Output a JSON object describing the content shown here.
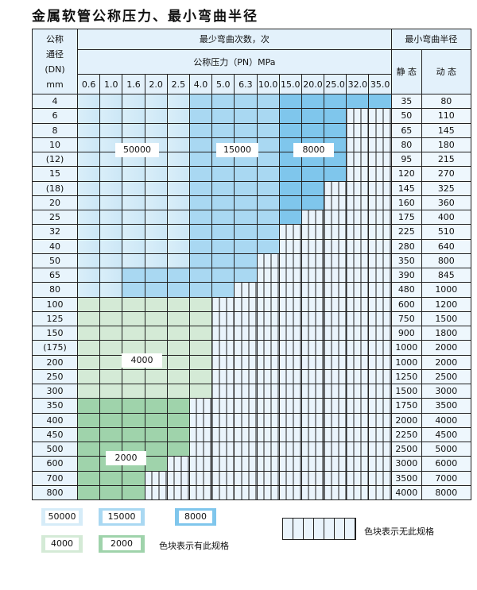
{
  "title": "金属软管公称压力、最小弯曲半径",
  "header": {
    "dn_label_lines": [
      "公称",
      "通径",
      "(DN)",
      "mm"
    ],
    "cycles_label": "最少弯曲次数，次",
    "pressure_label": "公称压力（PN）MPa",
    "radius_label": "最小弯曲半径",
    "static_label": "静 态",
    "dynamic_label": "动 态",
    "pressures": [
      "0.6",
      "1.0",
      "1.6",
      "2.0",
      "2.5",
      "4.0",
      "5.0",
      "6.3",
      "10.0",
      "15.0",
      "20.0",
      "25.0",
      "32.0",
      "35.0"
    ]
  },
  "legend_codes": {
    "A": "50000",
    "B": "15000",
    "C": "8000",
    "D": "4000",
    "E": "2000",
    "N": "none"
  },
  "colors": {
    "A": "#d9eef9",
    "B": "#a9d8f2",
    "C": "#7fc6ec",
    "D": "#d4ead6",
    "E": "#9fd3ab",
    "N": "#eaf4fc"
  },
  "rows": [
    {
      "dn": "4",
      "cells": "AAAAABBBBCCCCC",
      "static": "35",
      "dynamic": "80"
    },
    {
      "dn": "6",
      "cells": "AAAAABBBBCCCNN",
      "static": "50",
      "dynamic": "110"
    },
    {
      "dn": "8",
      "cells": "AAAAABBBBCCCNN",
      "static": "65",
      "dynamic": "145"
    },
    {
      "dn": "10",
      "cells": "AAAAABBBBCCCNN",
      "static": "80",
      "dynamic": "180"
    },
    {
      "dn": "(12)",
      "cells": "AAAAABBBBCCCNN",
      "static": "95",
      "dynamic": "215"
    },
    {
      "dn": "15",
      "cells": "AAAAABBBBCCCNN",
      "static": "120",
      "dynamic": "270"
    },
    {
      "dn": "(18)",
      "cells": "AAAAABBBBCCNNN",
      "static": "145",
      "dynamic": "325"
    },
    {
      "dn": "20",
      "cells": "AAAAABBBBCCNNN",
      "static": "160",
      "dynamic": "360"
    },
    {
      "dn": "25",
      "cells": "AAAAABBBBCNNNN",
      "static": "175",
      "dynamic": "400"
    },
    {
      "dn": "32",
      "cells": "AAAAABBBBNNNNN",
      "static": "225",
      "dynamic": "510"
    },
    {
      "dn": "40",
      "cells": "AAAAABBBBNNNNN",
      "static": "280",
      "dynamic": "640"
    },
    {
      "dn": "50",
      "cells": "AAAAABBBNNNNNN",
      "static": "350",
      "dynamic": "800"
    },
    {
      "dn": "65",
      "cells": "AABBBBBBNNNNNN",
      "static": "390",
      "dynamic": "845"
    },
    {
      "dn": "80",
      "cells": "AABBBBBNNNNNNN",
      "static": "480",
      "dynamic": "1000"
    },
    {
      "dn": "100",
      "cells": "DDDDDDNNNNNNNN",
      "static": "600",
      "dynamic": "1200"
    },
    {
      "dn": "125",
      "cells": "DDDDDDNNNNNNNN",
      "static": "750",
      "dynamic": "1500"
    },
    {
      "dn": "150",
      "cells": "DDDDDDNNNNNNNN",
      "static": "900",
      "dynamic": "1800"
    },
    {
      "dn": "(175)",
      "cells": "DDDDDDNNNNNNNN",
      "static": "1000",
      "dynamic": "2000"
    },
    {
      "dn": "200",
      "cells": "DDDDDDNNNNNNNN",
      "static": "1000",
      "dynamic": "2000"
    },
    {
      "dn": "250",
      "cells": "DDDDDDNNNNNNNN",
      "static": "1250",
      "dynamic": "2500"
    },
    {
      "dn": "300",
      "cells": "DDDDDDNNNNNNNN",
      "static": "1500",
      "dynamic": "3000"
    },
    {
      "dn": "350",
      "cells": "EEEEENNNNNNNNN",
      "static": "1750",
      "dynamic": "3500"
    },
    {
      "dn": "400",
      "cells": "EEEEENNNNNNNNN",
      "static": "2000",
      "dynamic": "4000"
    },
    {
      "dn": "450",
      "cells": "EEEEENNNNNNNNN",
      "static": "2250",
      "dynamic": "4500"
    },
    {
      "dn": "500",
      "cells": "EEEEENNNNNNNNN",
      "static": "2500",
      "dynamic": "5000"
    },
    {
      "dn": "600",
      "cells": "EEEENNNNNNNNNN",
      "static": "3000",
      "dynamic": "6000"
    },
    {
      "dn": "700",
      "cells": "EEENNNNNNNNNNN",
      "static": "3500",
      "dynamic": "7000"
    },
    {
      "dn": "800",
      "cells": "EEENNNNNNNNNNN",
      "static": "4000",
      "dynamic": "8000"
    }
  ],
  "region_labels": {
    "a": "50000",
    "b": "15000",
    "c": "8000",
    "d": "4000",
    "e": "2000"
  },
  "legend": {
    "items": [
      "50000",
      "15000",
      "8000",
      "4000",
      "2000"
    ],
    "available_text": "色块表示有此规格",
    "unavailable_text": "色块表示无此规格"
  }
}
